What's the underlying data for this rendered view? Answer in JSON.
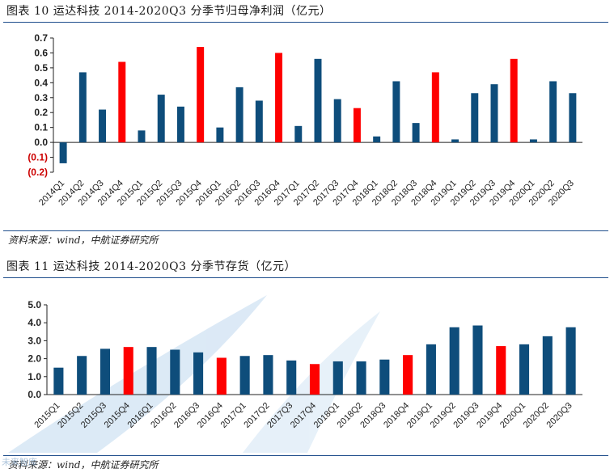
{
  "colors": {
    "normal": "#0e4d7b",
    "highlight": "#fe0000",
    "axis": "#222222",
    "neg_label": "#cc0000",
    "rule": "#1f4e8c"
  },
  "top": {
    "title": "图表 10 运达科技 2014-2020Q3 分季节归母净利润（亿元）",
    "source": "资料来源：wind，中航证券研究所"
  },
  "bottom": {
    "title": "图表 11 运达科技 2014-2020Q3 分季节存货（亿元）",
    "source": "资料来源：wind，中航证券研究所"
  },
  "watermark": "未来智库",
  "chart_data": [
    {
      "type": "bar",
      "title": "运达科技 2014-2020Q3 分季节归母净利润（亿元）",
      "xlabel": "",
      "ylabel": "",
      "ylim": [
        -0.2,
        0.7
      ],
      "yticks": [
        0.7,
        0.6,
        0.5,
        0.4,
        0.3,
        0.2,
        0.1,
        0.0,
        -0.1,
        -0.2
      ],
      "ytick_labels": [
        "0.7",
        "0.6",
        "0.5",
        "0.4",
        "0.3",
        "0.2",
        "0.1",
        "0.0",
        "(0.1)",
        "(0.2)"
      ],
      "categories": [
        "2014Q1",
        "2014Q2",
        "2014Q3",
        "2014Q4",
        "2015Q1",
        "2015Q2",
        "2015Q3",
        "2015Q4",
        "2016Q1",
        "2016Q2",
        "2016Q3",
        "2016Q4",
        "2017Q1",
        "2017Q2",
        "2017Q3",
        "2017Q4",
        "2018Q1",
        "2018Q2",
        "2018Q3",
        "2018Q4",
        "2019Q1",
        "2019Q2",
        "2019Q3",
        "2019Q4",
        "2020Q1",
        "2020Q2",
        "2020Q3"
      ],
      "values": [
        -0.14,
        0.47,
        0.22,
        0.54,
        0.08,
        0.32,
        0.24,
        0.64,
        0.1,
        0.37,
        0.28,
        0.6,
        0.11,
        0.56,
        0.29,
        0.23,
        0.04,
        0.41,
        0.13,
        0.47,
        0.02,
        0.33,
        0.39,
        0.56,
        0.02,
        0.41,
        0.33
      ],
      "highlight": [
        false,
        false,
        false,
        true,
        false,
        false,
        false,
        true,
        false,
        false,
        false,
        true,
        false,
        false,
        false,
        true,
        false,
        false,
        false,
        true,
        false,
        false,
        false,
        true,
        false,
        false,
        false
      ]
    },
    {
      "type": "bar",
      "title": "运达科技 2014-2020Q3 分季节存货（亿元）",
      "xlabel": "",
      "ylabel": "",
      "ylim": [
        0,
        5.0
      ],
      "yticks": [
        5.0,
        4.0,
        3.0,
        2.0,
        1.0,
        0.0
      ],
      "ytick_labels": [
        "5.0",
        "4.0",
        "3.0",
        "2.0",
        "1.0",
        "0.0"
      ],
      "categories": [
        "2015Q1",
        "2015Q2",
        "2015Q3",
        "2015Q4",
        "2016Q1",
        "2016Q2",
        "2016Q3",
        "2016Q4",
        "2017Q1",
        "2017Q2",
        "2017Q3",
        "2017Q4",
        "2018Q1",
        "2018Q2",
        "2018Q3",
        "2018Q4",
        "2019Q1",
        "2019Q2",
        "2019Q3",
        "2019Q4",
        "2020Q1",
        "2020Q2",
        "2020Q3"
      ],
      "values": [
        1.5,
        2.15,
        2.55,
        2.65,
        2.65,
        2.5,
        2.35,
        2.05,
        2.15,
        2.2,
        1.9,
        1.7,
        1.85,
        1.85,
        1.95,
        2.2,
        2.8,
        3.75,
        3.85,
        2.7,
        2.8,
        3.25,
        3.75
      ],
      "highlight": [
        false,
        false,
        false,
        true,
        false,
        false,
        false,
        true,
        false,
        false,
        false,
        true,
        false,
        false,
        false,
        true,
        false,
        false,
        false,
        true,
        false,
        false,
        false
      ]
    }
  ]
}
